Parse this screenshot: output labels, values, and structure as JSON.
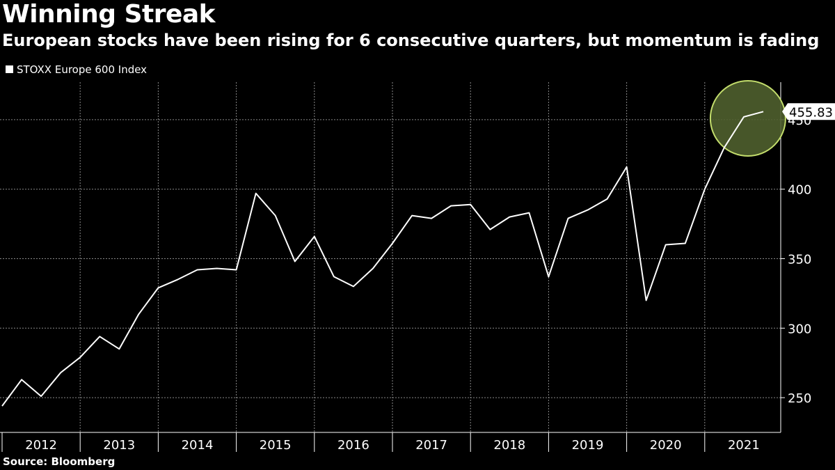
{
  "title": "Winning Streak",
  "subtitle": "European stocks have been rising for 6 consecutive quarters, but momentum is fading",
  "source": "Source: Bloomberg",
  "chart_data": {
    "type": "line",
    "title": "Winning Streak",
    "xlabel": "",
    "ylabel": "",
    "ylim": [
      225,
      477
    ],
    "yticks": [
      250,
      300,
      350,
      400,
      450
    ],
    "grid": true,
    "legend_position": "top-left",
    "x_categories": [
      "2012",
      "2013",
      "2014",
      "2015",
      "2016",
      "2017",
      "2018",
      "2019",
      "2020",
      "2021"
    ],
    "series": [
      {
        "name": "STOXX Europe 600 Index",
        "color": "#ffffff",
        "x": [
          0,
          0.25,
          0.5,
          0.75,
          1,
          1.25,
          1.5,
          1.75,
          2,
          2.25,
          2.5,
          2.75,
          3,
          3.25,
          3.5,
          3.75,
          4,
          4.25,
          4.5,
          4.75,
          5,
          5.25,
          5.5,
          5.75,
          6,
          6.25,
          6.5,
          6.75,
          7,
          7.25,
          7.5,
          7.75,
          8,
          8.25,
          8.5,
          8.75,
          9,
          9.25,
          9.5,
          9.75
        ],
        "values": [
          244,
          263,
          251,
          268,
          279,
          294,
          285,
          310,
          329,
          335,
          342,
          343,
          342,
          397,
          381,
          348,
          366,
          337,
          330,
          343,
          361,
          381,
          379,
          388,
          389,
          371,
          380,
          383,
          337,
          379,
          385,
          393,
          416,
          320,
          360,
          361,
          400,
          430,
          452,
          455.83
        ]
      }
    ],
    "last_value_label": "455.83",
    "highlight": "last quarters circled"
  }
}
